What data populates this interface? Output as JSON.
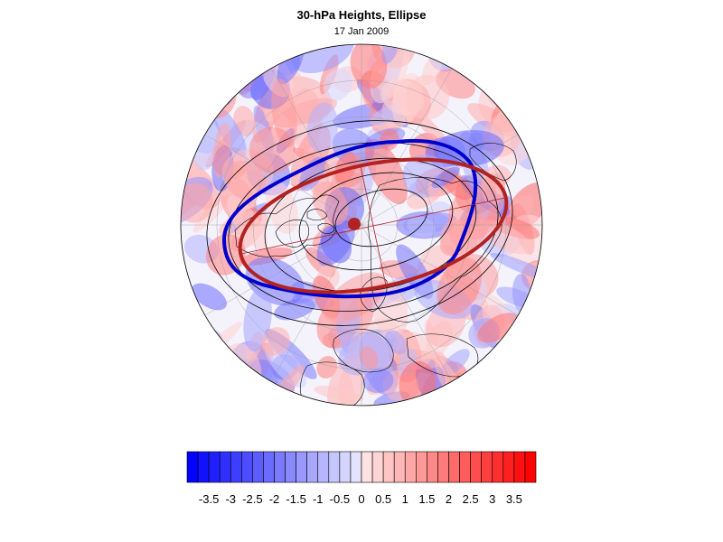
{
  "title": "30-hPa Heights, Ellipse",
  "subtitle": "17 Jan 2009",
  "colorbar": {
    "labels": [
      "-3.5",
      "-3",
      "-2.5",
      "-2",
      "-1.5",
      "-1",
      "-0.5",
      "0",
      "0.5",
      "1",
      "1.5",
      "2",
      "2.5",
      "3",
      "3.5"
    ],
    "levels": [
      -4,
      -3.75,
      -3.5,
      -3.25,
      -3,
      -2.75,
      -2.5,
      -2.25,
      -2,
      -1.75,
      -1.5,
      -1.25,
      -1,
      -0.75,
      -0.5,
      -0.25,
      0,
      0.25,
      0.5,
      0.75,
      1,
      1.25,
      1.5,
      1.75,
      2,
      2.25,
      2.5,
      2.75,
      3,
      3.25,
      3.5,
      3.75,
      4
    ],
    "neg_color": "#0000ff",
    "pos_color": "#ff0000"
  },
  "map": {
    "projection": "north-polar-stereographic",
    "ellipse_color": "#b22222",
    "vortex_edge_color": "#0000cc",
    "height_contour_color": "#000000",
    "center_marker_color": "#b22222"
  }
}
